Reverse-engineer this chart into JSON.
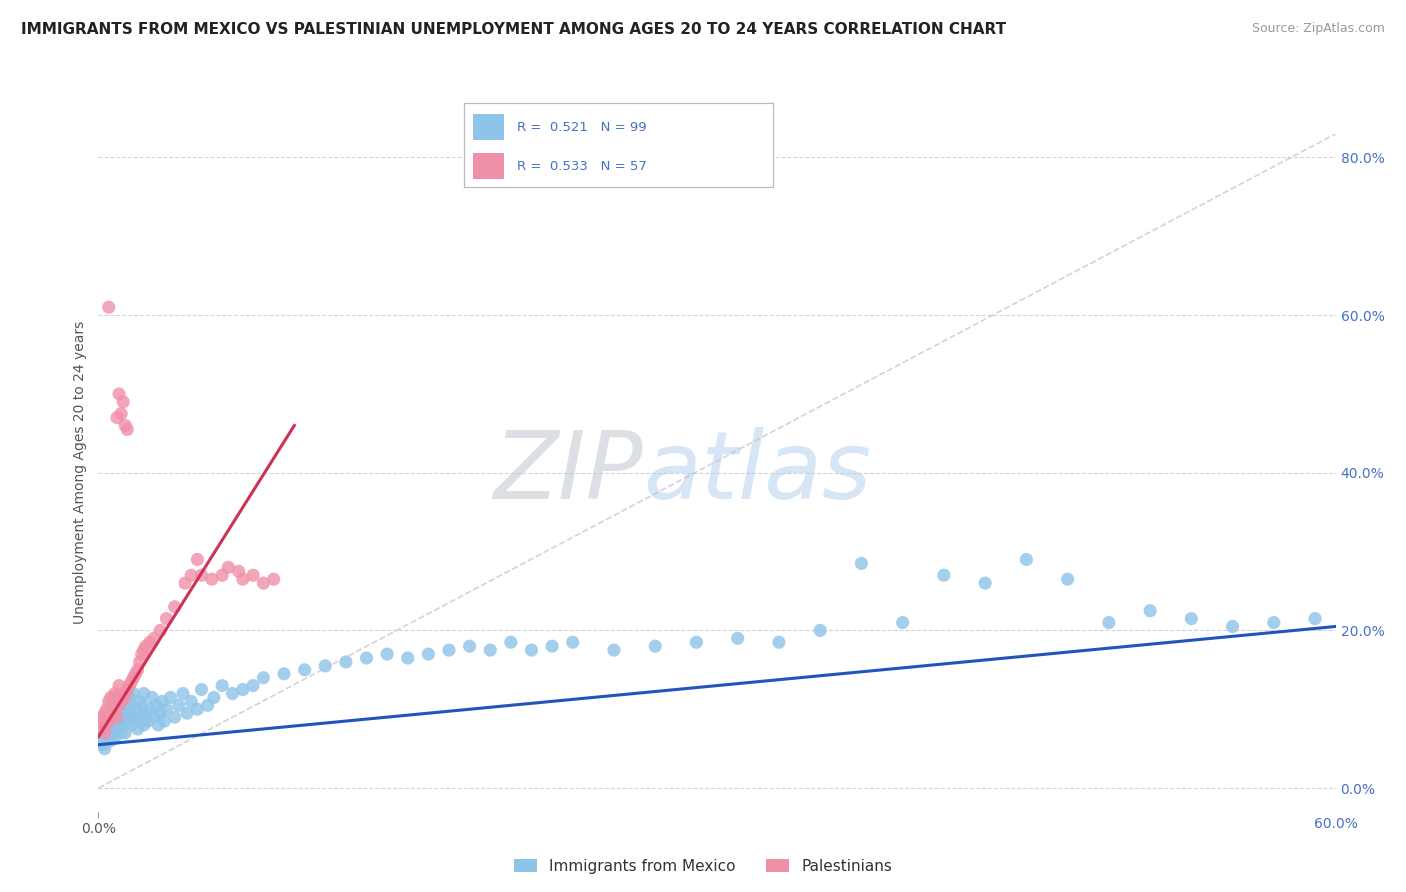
{
  "title": "IMMIGRANTS FROM MEXICO VS PALESTINIAN UNEMPLOYMENT AMONG AGES 20 TO 24 YEARS CORRELATION CHART",
  "source": "Source: ZipAtlas.com",
  "xlim": [
    0,
    0.6
  ],
  "ylim": [
    -0.03,
    0.83
  ],
  "ylabel": "Unemployment Among Ages 20 to 24 years",
  "legend_r1": "R = 0.521   N = 99",
  "legend_r2": "R = 0.533   N = 57",
  "legend_label1": "Immigrants from Mexico",
  "legend_label2": "Palestinians",
  "color_blue": "#8ec4e8",
  "color_pink": "#f090a8",
  "color_blue_line": "#2255bb",
  "color_pink_line": "#cc3355",
  "color_right_axis": "#4472c4",
  "background_color": "#ffffff",
  "grid_color": "#c8c8d8",
  "ytick_vals": [
    0.0,
    0.2,
    0.4,
    0.6,
    0.8
  ],
  "ytick_labels": [
    "0.0%",
    "20.0%",
    "40.0%",
    "60.0%",
    "80.0%"
  ],
  "xtick_vals": [
    0.0,
    0.6
  ],
  "xtick_labels": [
    "0.0%",
    "60.0%"
  ],
  "blue_line_x": [
    0.0,
    0.6
  ],
  "blue_line_y": [
    0.055,
    0.205
  ],
  "pink_line_x": [
    0.0,
    0.095
  ],
  "pink_line_y": [
    0.065,
    0.46
  ],
  "diag_line_x": [
    0.0,
    0.6
  ],
  "diag_line_y": [
    0.0,
    0.83
  ],
  "blue_scatter_x": [
    0.001,
    0.002,
    0.003,
    0.003,
    0.004,
    0.004,
    0.005,
    0.005,
    0.006,
    0.006,
    0.007,
    0.007,
    0.008,
    0.008,
    0.009,
    0.009,
    0.01,
    0.01,
    0.011,
    0.011,
    0.012,
    0.012,
    0.013,
    0.013,
    0.014,
    0.014,
    0.015,
    0.015,
    0.016,
    0.016,
    0.017,
    0.017,
    0.018,
    0.018,
    0.019,
    0.02,
    0.02,
    0.021,
    0.022,
    0.022,
    0.023,
    0.024,
    0.025,
    0.026,
    0.027,
    0.028,
    0.029,
    0.03,
    0.031,
    0.032,
    0.033,
    0.035,
    0.037,
    0.039,
    0.041,
    0.043,
    0.045,
    0.048,
    0.05,
    0.053,
    0.056,
    0.06,
    0.065,
    0.07,
    0.075,
    0.08,
    0.09,
    0.1,
    0.11,
    0.12,
    0.13,
    0.14,
    0.15,
    0.16,
    0.17,
    0.18,
    0.19,
    0.2,
    0.21,
    0.22,
    0.23,
    0.25,
    0.27,
    0.29,
    0.31,
    0.33,
    0.35,
    0.37,
    0.39,
    0.41,
    0.43,
    0.45,
    0.47,
    0.49,
    0.51,
    0.53,
    0.55,
    0.57,
    0.59
  ],
  "blue_scatter_y": [
    0.06,
    0.055,
    0.07,
    0.05,
    0.065,
    0.08,
    0.075,
    0.09,
    0.06,
    0.085,
    0.07,
    0.095,
    0.08,
    0.065,
    0.09,
    0.075,
    0.085,
    0.1,
    0.07,
    0.095,
    0.08,
    0.11,
    0.09,
    0.07,
    0.1,
    0.085,
    0.095,
    0.115,
    0.08,
    0.105,
    0.09,
    0.12,
    0.085,
    0.1,
    0.075,
    0.11,
    0.09,
    0.105,
    0.08,
    0.12,
    0.095,
    0.085,
    0.1,
    0.115,
    0.09,
    0.105,
    0.08,
    0.095,
    0.11,
    0.085,
    0.1,
    0.115,
    0.09,
    0.105,
    0.12,
    0.095,
    0.11,
    0.1,
    0.125,
    0.105,
    0.115,
    0.13,
    0.12,
    0.125,
    0.13,
    0.14,
    0.145,
    0.15,
    0.155,
    0.16,
    0.165,
    0.17,
    0.165,
    0.17,
    0.175,
    0.18,
    0.175,
    0.185,
    0.175,
    0.18,
    0.185,
    0.175,
    0.18,
    0.185,
    0.19,
    0.185,
    0.2,
    0.285,
    0.21,
    0.27,
    0.26,
    0.29,
    0.265,
    0.21,
    0.225,
    0.215,
    0.205,
    0.21,
    0.215
  ],
  "pink_scatter_x": [
    0.001,
    0.001,
    0.002,
    0.002,
    0.003,
    0.003,
    0.004,
    0.004,
    0.005,
    0.005,
    0.006,
    0.006,
    0.007,
    0.007,
    0.008,
    0.008,
    0.009,
    0.009,
    0.01,
    0.01,
    0.011,
    0.012,
    0.013,
    0.014,
    0.015,
    0.016,
    0.017,
    0.018,
    0.019,
    0.02,
    0.021,
    0.022,
    0.023,
    0.025,
    0.027,
    0.03,
    0.033,
    0.037,
    0.042,
    0.045,
    0.048,
    0.05,
    0.055,
    0.06,
    0.063,
    0.068,
    0.07,
    0.075,
    0.08,
    0.085,
    0.009,
    0.01,
    0.011,
    0.012,
    0.013,
    0.014,
    0.005
  ],
  "pink_scatter_y": [
    0.08,
    0.075,
    0.085,
    0.09,
    0.07,
    0.095,
    0.08,
    0.1,
    0.085,
    0.11,
    0.09,
    0.115,
    0.095,
    0.105,
    0.1,
    0.12,
    0.09,
    0.115,
    0.105,
    0.13,
    0.11,
    0.12,
    0.115,
    0.125,
    0.13,
    0.135,
    0.14,
    0.145,
    0.15,
    0.16,
    0.17,
    0.175,
    0.18,
    0.185,
    0.19,
    0.2,
    0.215,
    0.23,
    0.26,
    0.27,
    0.29,
    0.27,
    0.265,
    0.27,
    0.28,
    0.275,
    0.265,
    0.27,
    0.26,
    0.265,
    0.47,
    0.5,
    0.475,
    0.49,
    0.46,
    0.455,
    0.61
  ]
}
